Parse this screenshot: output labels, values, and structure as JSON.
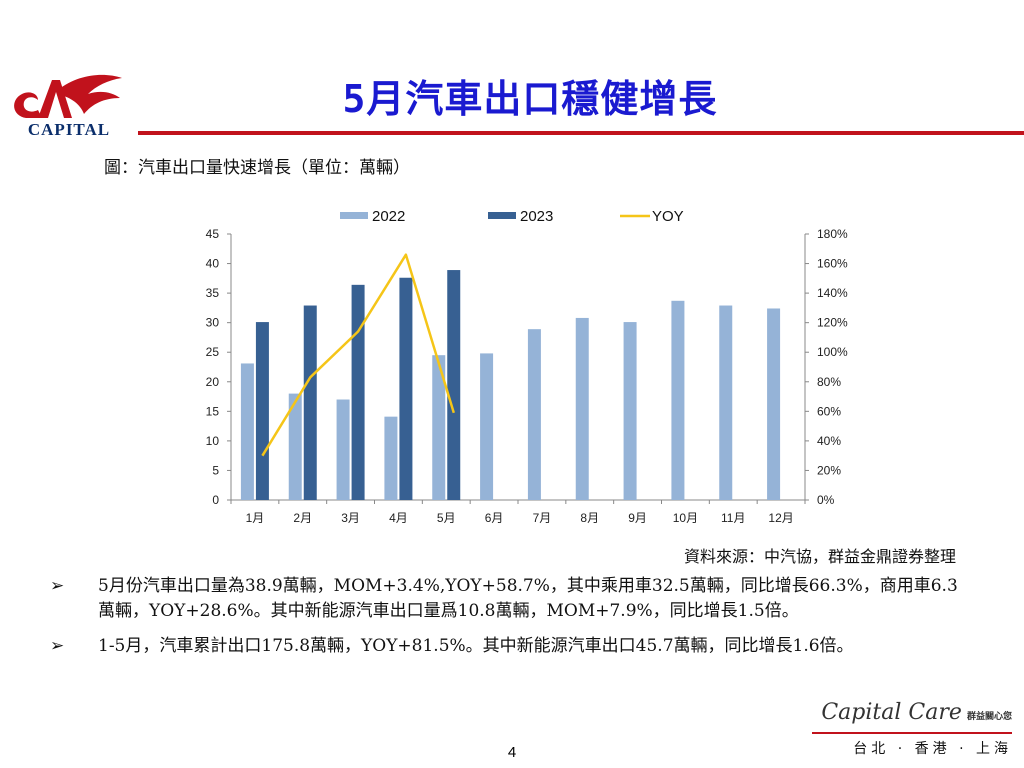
{
  "logo": {
    "text": "CAPITAL"
  },
  "title": "5月汽車出口穩健增長",
  "caption": "圖：汽車出口量快速增長（單位：萬輛）",
  "source": "資料來源：中汽協，群益金鼎證券整理",
  "bullets": [
    {
      "mark": "➢",
      "text": "5月份汽車出口量為38.9萬輛，MOM+3.4%,YOY+58.7%，其中乘用車32.5萬輛，同比增長66.3%，商用車6.3萬輛，YOY+28.6%。其中新能源汽車出口量爲10.8萬輛，MOM+7.9%，同比增長1.5倍。"
    },
    {
      "mark": "➢",
      "text": "1-5月，汽車累計出口175.8萬輛，YOY+81.5%。其中新能源汽車出口45.7萬輛，同比增長1.6倍。"
    }
  ],
  "brand": {
    "script": "Capital Care",
    "sub": "群益關心您",
    "cities": "台北 · 香港 · 上海"
  },
  "page_number": "4",
  "colors": {
    "title": "#1a1ad0",
    "rule": "#c1121c",
    "bar2022": "#95b3d7",
    "bar2023": "#376092",
    "yoy": "#f5c518"
  },
  "chart_data": {
    "type": "bar",
    "categories": [
      "1月",
      "2月",
      "3月",
      "4月",
      "5月",
      "6月",
      "7月",
      "8月",
      "9月",
      "10月",
      "11月",
      "12月"
    ],
    "series": [
      {
        "name": "2022",
        "type": "bar",
        "axis": "left",
        "values": [
          23.1,
          18.0,
          17.0,
          14.1,
          24.5,
          24.8,
          28.9,
          30.8,
          30.1,
          33.7,
          32.9,
          32.4
        ]
      },
      {
        "name": "2023",
        "type": "bar",
        "axis": "left",
        "values": [
          30.1,
          32.9,
          36.4,
          37.6,
          38.9,
          null,
          null,
          null,
          null,
          null,
          null,
          null
        ]
      },
      {
        "name": "YOY",
        "type": "line",
        "axis": "right",
        "values": [
          30,
          83,
          114,
          166,
          59,
          null,
          null,
          null,
          null,
          null,
          null,
          null
        ]
      }
    ],
    "ylim": [
      0,
      45
    ],
    "yticks": [
      "0",
      "5",
      "10",
      "15",
      "20",
      "25",
      "30",
      "35",
      "40",
      "45"
    ],
    "y2lim": [
      0,
      180
    ],
    "y2ticks": [
      "0%",
      "20%",
      "40%",
      "60%",
      "80%",
      "100%",
      "120%",
      "140%",
      "160%",
      "180%"
    ],
    "legend": "top"
  }
}
